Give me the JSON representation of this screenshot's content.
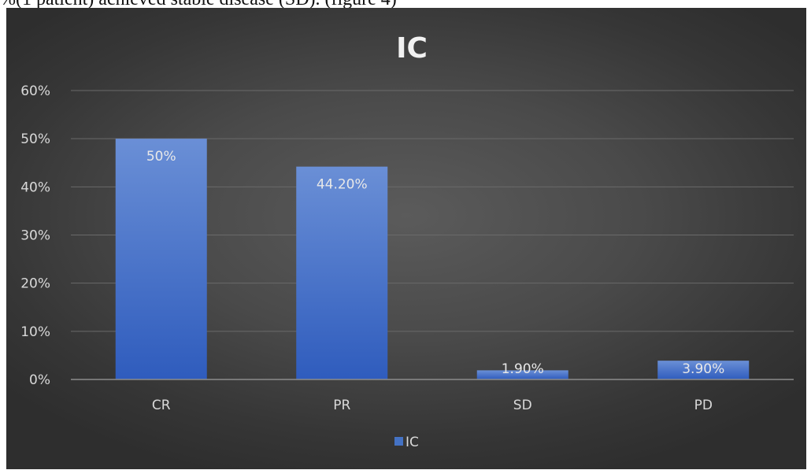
{
  "caption": "%(1 patient) achieved stable disease (SD). (figure 4)",
  "chart_data": {
    "type": "bar",
    "title": "IC",
    "categories": [
      "CR",
      "PR",
      "SD",
      "PD"
    ],
    "series": [
      {
        "name": "IC",
        "values": [
          50,
          44.2,
          1.9,
          3.9
        ],
        "labels": [
          "50%",
          "44.20%",
          "1.90%",
          "3.90%"
        ],
        "color": "#4472c4"
      }
    ],
    "ylim": [
      0,
      60
    ],
    "yticks": [
      0,
      10,
      20,
      30,
      40,
      50,
      60
    ],
    "ytick_labels": [
      "0%",
      "10%",
      "20%",
      "30%",
      "40%",
      "50%",
      "60%"
    ],
    "xlabel": "",
    "ylabel": "",
    "grid": true,
    "legend": "bottom",
    "background_color": "#4a4a4a"
  }
}
